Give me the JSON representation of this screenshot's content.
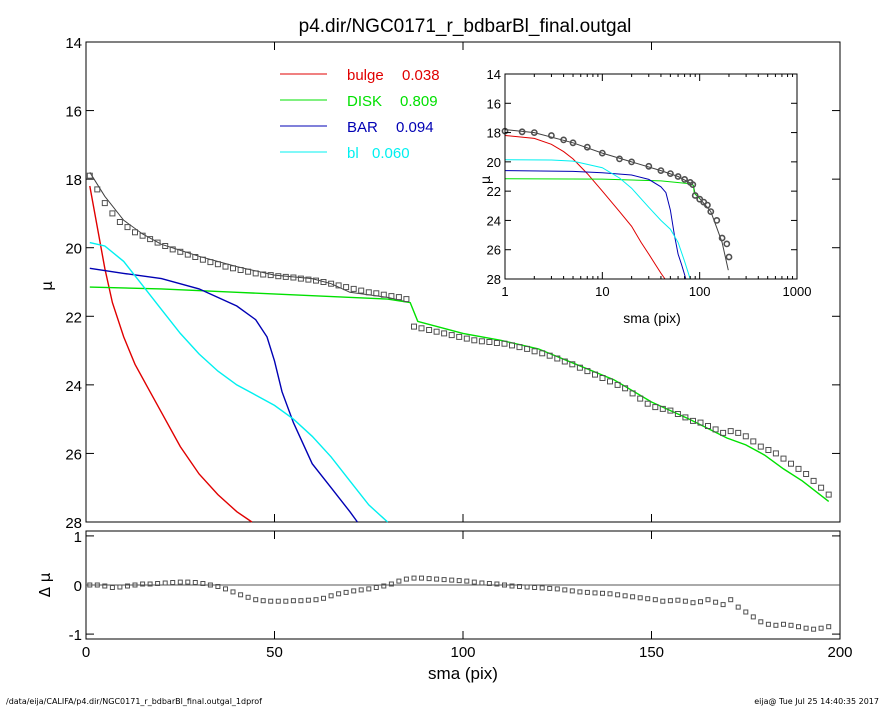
{
  "title": "p4.dir/NGC0171_r_bdbarBl_final.outgal",
  "footer": {
    "left": "/data/eija/CALIFA/p4.dir/NGC0171_r_bdbarBl_final.outgal_1dprof",
    "right": "eija@  Tue Jul 25 14:40:35 2017"
  },
  "colors": {
    "bulge": "#e00000",
    "disk": "#00e000",
    "bar": "#0000b4",
    "bl": "#00f0f0",
    "model": "#404040",
    "data": "#505050"
  },
  "chart_data": [
    {
      "type": "line",
      "panel": "main profile",
      "xlabel": "",
      "ylabel": "μ",
      "xlim": [
        0,
        200
      ],
      "ylim": [
        28,
        14
      ],
      "yticks": [
        14,
        16,
        18,
        20,
        22,
        24,
        26,
        28
      ],
      "legend_position": "top-center",
      "legend": [
        {
          "name": "bulge",
          "value": "0.038",
          "color_key": "bulge"
        },
        {
          "name": "DISK",
          "value": "0.809",
          "color_key": "disk"
        },
        {
          "name": "BAR",
          "value": "0.094",
          "color_key": "bar"
        },
        {
          "name": "bl",
          "value": "0.060",
          "color_key": "bl"
        }
      ],
      "data_points": {
        "x": [
          1,
          3,
          5,
          7,
          9,
          11,
          13,
          15,
          17,
          19,
          21,
          23,
          25,
          27,
          29,
          31,
          33,
          35,
          37,
          39,
          41,
          43,
          45,
          47,
          49,
          51,
          53,
          55,
          57,
          59,
          61,
          63,
          65,
          67,
          69,
          71,
          73,
          75,
          77,
          79,
          81,
          83,
          85,
          87,
          89,
          91,
          93,
          95,
          97,
          99,
          101,
          103,
          105,
          107,
          109,
          111,
          113,
          115,
          117,
          119,
          121,
          123,
          125,
          127,
          129,
          131,
          133,
          135,
          137,
          139,
          141,
          143,
          145,
          147,
          149,
          151,
          153,
          155,
          157,
          159,
          161,
          163,
          165,
          167,
          169,
          171,
          173,
          175,
          177,
          179,
          181,
          183,
          185,
          187,
          189,
          191,
          193,
          195,
          197
        ],
        "y": [
          17.9,
          18.3,
          18.7,
          19.0,
          19.25,
          19.4,
          19.55,
          19.65,
          19.75,
          19.85,
          19.95,
          20.05,
          20.12,
          20.2,
          20.27,
          20.35,
          20.42,
          20.48,
          20.55,
          20.6,
          20.65,
          20.7,
          20.75,
          20.78,
          20.8,
          20.83,
          20.85,
          20.87,
          20.9,
          20.93,
          20.96,
          21.0,
          21.05,
          21.1,
          21.15,
          21.2,
          21.25,
          21.3,
          21.33,
          21.37,
          21.41,
          21.44,
          21.5,
          22.3,
          22.35,
          22.4,
          22.45,
          22.5,
          22.55,
          22.6,
          22.65,
          22.7,
          22.73,
          22.75,
          22.78,
          22.8,
          22.85,
          22.9,
          22.95,
          23.02,
          23.08,
          23.15,
          23.23,
          23.32,
          23.4,
          23.5,
          23.6,
          23.7,
          23.8,
          23.9,
          24.0,
          24.1,
          24.25,
          24.4,
          24.55,
          24.65,
          24.7,
          24.75,
          24.85,
          24.95,
          25.05,
          25.1,
          25.2,
          25.3,
          25.4,
          25.35,
          25.4,
          25.5,
          25.65,
          25.8,
          25.9,
          26.0,
          26.15,
          26.3,
          26.45,
          26.6,
          26.8,
          27.0,
          27.2
        ]
      },
      "series": [
        {
          "name": "model",
          "color_key": "model",
          "x": [
            1,
            5,
            10,
            15,
            20,
            30,
            40,
            50,
            60,
            65,
            70,
            80,
            86
          ],
          "y": [
            17.8,
            18.5,
            19.2,
            19.6,
            19.9,
            20.25,
            20.55,
            20.8,
            20.9,
            21.05,
            21.3,
            21.45,
            21.6
          ]
        },
        {
          "name": "bulge",
          "color_key": "bulge",
          "x": [
            1,
            3,
            5,
            7,
            10,
            13,
            16,
            20,
            25,
            30,
            35,
            40,
            44
          ],
          "y": [
            18.2,
            19.4,
            20.6,
            21.6,
            22.6,
            23.4,
            24.0,
            24.8,
            25.8,
            26.6,
            27.2,
            27.7,
            28.0
          ]
        },
        {
          "name": "DISK",
          "color_key": "disk",
          "x": [
            1,
            20,
            40,
            60,
            80,
            86,
            88,
            100,
            110,
            120,
            130,
            140,
            150,
            160,
            170,
            175,
            180,
            185,
            190,
            197
          ],
          "y": [
            21.15,
            21.2,
            21.3,
            21.4,
            21.5,
            21.6,
            22.15,
            22.5,
            22.7,
            22.95,
            23.4,
            23.85,
            24.5,
            25.0,
            25.55,
            25.75,
            26.05,
            26.45,
            26.8,
            27.4
          ]
        },
        {
          "name": "BAR",
          "color_key": "bar",
          "x": [
            1,
            10,
            20,
            30,
            40,
            45,
            48,
            50,
            52,
            55,
            60,
            65,
            70,
            72
          ],
          "y": [
            20.6,
            20.75,
            20.9,
            21.2,
            21.7,
            22.1,
            22.6,
            23.3,
            24.2,
            25.1,
            26.3,
            27.0,
            27.7,
            28.0
          ]
        },
        {
          "name": "bl",
          "color_key": "bl",
          "x": [
            1,
            5,
            10,
            15,
            20,
            25,
            30,
            35,
            40,
            45,
            50,
            55,
            60,
            65,
            70,
            75,
            80
          ],
          "y": [
            19.85,
            19.95,
            20.4,
            21.1,
            21.8,
            22.5,
            23.1,
            23.6,
            24.0,
            24.3,
            24.6,
            25.0,
            25.5,
            26.1,
            26.8,
            27.5,
            28.0
          ]
        }
      ]
    },
    {
      "type": "scatter",
      "panel": "residual",
      "xlabel": "sma (pix)",
      "ylabel": "Δ μ",
      "xlim": [
        0,
        200
      ],
      "ylim": [
        -1.1,
        1.1
      ],
      "xticks": [
        0,
        50,
        100,
        150,
        200
      ],
      "yticks": [
        -1,
        0,
        1
      ],
      "data_points": {
        "x": [
          1,
          3,
          5,
          7,
          9,
          11,
          13,
          15,
          17,
          19,
          21,
          23,
          25,
          27,
          29,
          31,
          33,
          35,
          37,
          39,
          41,
          43,
          45,
          47,
          49,
          51,
          53,
          55,
          57,
          59,
          61,
          63,
          65,
          67,
          69,
          71,
          73,
          75,
          77,
          79,
          81,
          83,
          85,
          87,
          89,
          91,
          93,
          95,
          97,
          99,
          101,
          103,
          105,
          107,
          109,
          111,
          113,
          115,
          117,
          119,
          121,
          123,
          125,
          127,
          129,
          131,
          133,
          135,
          137,
          139,
          141,
          143,
          145,
          147,
          149,
          151,
          153,
          155,
          157,
          159,
          161,
          163,
          165,
          167,
          169,
          171,
          173,
          175,
          177,
          179,
          181,
          183,
          185,
          187,
          189,
          191,
          193,
          195,
          197
        ],
        "y": [
          0.0,
          0.0,
          -0.02,
          -0.05,
          -0.04,
          -0.02,
          0.0,
          0.02,
          0.02,
          0.03,
          0.04,
          0.05,
          0.06,
          0.06,
          0.05,
          0.03,
          0.0,
          -0.03,
          -0.08,
          -0.14,
          -0.2,
          -0.25,
          -0.3,
          -0.32,
          -0.33,
          -0.33,
          -0.33,
          -0.32,
          -0.32,
          -0.31,
          -0.3,
          -0.27,
          -0.22,
          -0.18,
          -0.15,
          -0.12,
          -0.1,
          -0.08,
          -0.05,
          -0.02,
          0.02,
          0.08,
          0.12,
          0.14,
          0.14,
          0.13,
          0.12,
          0.11,
          0.1,
          0.09,
          0.08,
          0.06,
          0.04,
          0.03,
          0.02,
          0.0,
          -0.02,
          -0.03,
          -0.04,
          -0.05,
          -0.06,
          -0.07,
          -0.08,
          -0.1,
          -0.12,
          -0.14,
          -0.15,
          -0.16,
          -0.17,
          -0.18,
          -0.2,
          -0.22,
          -0.24,
          -0.26,
          -0.28,
          -0.3,
          -0.33,
          -0.32,
          -0.31,
          -0.33,
          -0.36,
          -0.34,
          -0.3,
          -0.35,
          -0.4,
          -0.3,
          -0.45,
          -0.55,
          -0.65,
          -0.75,
          -0.8,
          -0.82,
          -0.8,
          -0.82,
          -0.85,
          -0.88,
          -0.9,
          -0.88,
          -0.85
        ]
      }
    },
    {
      "type": "line",
      "panel": "inset",
      "xlabel": "sma (pix)",
      "ylabel": "μ",
      "xscale": "log",
      "xlim": [
        1,
        1000
      ],
      "ylim": [
        28,
        14
      ],
      "xticks": [
        1,
        10,
        100,
        1000
      ],
      "yticks": [
        14,
        16,
        18,
        20,
        22,
        24,
        26,
        28
      ],
      "data_points": {
        "x": [
          1,
          1.5,
          2,
          3,
          4,
          5,
          7,
          10,
          15,
          20,
          30,
          40,
          50,
          60,
          70,
          80,
          85,
          90,
          100,
          110,
          120,
          130,
          150,
          170,
          190,
          200
        ],
        "y": [
          17.9,
          17.95,
          18.0,
          18.2,
          18.5,
          18.7,
          19.0,
          19.4,
          19.8,
          20.0,
          20.3,
          20.6,
          20.8,
          21.0,
          21.2,
          21.4,
          21.55,
          22.3,
          22.55,
          22.75,
          22.95,
          23.4,
          24.0,
          25.2,
          25.6,
          26.5
        ]
      },
      "series": [
        {
          "name": "model",
          "color_key": "model",
          "x": [
            1,
            2,
            5,
            10,
            20,
            40,
            60,
            80,
            86,
            90,
            100,
            130,
            150,
            170,
            197
          ],
          "y": [
            17.8,
            18.0,
            18.7,
            19.4,
            20.0,
            20.6,
            21.0,
            21.45,
            21.6,
            22.2,
            22.5,
            23.4,
            24.5,
            25.5,
            27.4
          ]
        },
        {
          "name": "bulge",
          "color_key": "bulge",
          "x": [
            1,
            2,
            3,
            4,
            5,
            7,
            10,
            15,
            20,
            25,
            30,
            35,
            40,
            44
          ],
          "y": [
            18.2,
            18.4,
            18.8,
            19.3,
            19.8,
            20.8,
            22.0,
            23.4,
            24.4,
            25.5,
            26.3,
            27.0,
            27.6,
            28.0
          ]
        },
        {
          "name": "DISK",
          "color_key": "disk",
          "x": [
            1,
            10,
            40,
            80,
            86,
            88,
            100
          ],
          "y": [
            21.15,
            21.18,
            21.3,
            21.5,
            21.6,
            22.15,
            22.5
          ]
        },
        {
          "name": "BAR",
          "color_key": "bar",
          "x": [
            1,
            5,
            10,
            20,
            30,
            40,
            45,
            50,
            55,
            60,
            65,
            70,
            72
          ],
          "y": [
            20.6,
            20.65,
            20.75,
            20.9,
            21.2,
            21.7,
            22.1,
            23.3,
            25.0,
            26.3,
            27.0,
            27.7,
            28.0
          ]
        },
        {
          "name": "bl",
          "color_key": "bl",
          "x": [
            1,
            3,
            5,
            10,
            15,
            20,
            30,
            40,
            50,
            60,
            70,
            80
          ],
          "y": [
            19.85,
            19.87,
            19.95,
            20.4,
            21.1,
            21.8,
            23.1,
            24.0,
            24.6,
            25.5,
            26.8,
            28.0
          ]
        }
      ]
    }
  ]
}
